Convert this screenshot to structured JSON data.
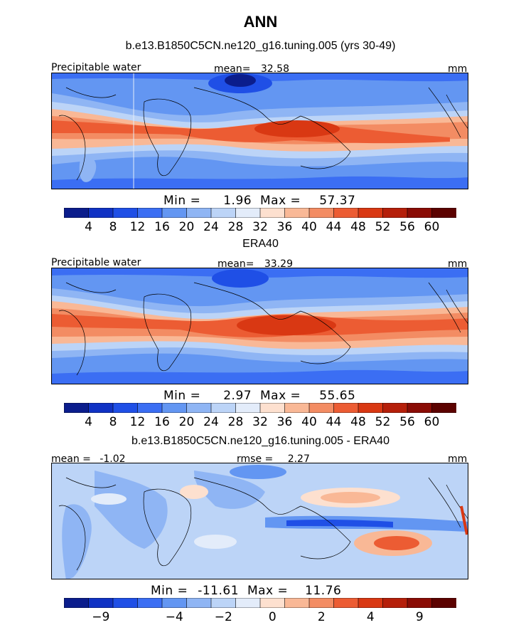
{
  "title": "ANN",
  "chart_data": [
    {
      "type": "heatmap",
      "title": "b.e13.B1850C5CN.ne120_g16.tuning.005 (yrs 30-49)",
      "variable": "Precipitable water",
      "mean_label": "mean=",
      "mean": "32.58",
      "units": "mm",
      "min_label": "Min =",
      "min": "1.96",
      "max_label": "Max =",
      "max": "57.37",
      "levels": [
        "4",
        "8",
        "12",
        "16",
        "20",
        "24",
        "28",
        "32",
        "36",
        "40",
        "44",
        "48",
        "52",
        "56",
        "60"
      ],
      "colors": [
        "#0b1d8c",
        "#1032c4",
        "#1f4fe6",
        "#3b6ef3",
        "#6396f2",
        "#8fb5f4",
        "#bcd4f7",
        "#e3ecfa",
        "#fde0cf",
        "#f9b896",
        "#f38c63",
        "#ec5c33",
        "#d93813",
        "#b51f0a",
        "#8a0c05",
        "#5c0200"
      ]
    },
    {
      "type": "heatmap",
      "title": "ERA40",
      "variable": "Precipitable water",
      "mean_label": "mean=",
      "mean": "33.29",
      "units": "mm",
      "min_label": "Min =",
      "min": "2.97",
      "max_label": "Max =",
      "max": "55.65",
      "levels": [
        "4",
        "8",
        "12",
        "16",
        "20",
        "24",
        "28",
        "32",
        "36",
        "40",
        "44",
        "48",
        "52",
        "56",
        "60"
      ],
      "colors": [
        "#0b1d8c",
        "#1032c4",
        "#1f4fe6",
        "#3b6ef3",
        "#6396f2",
        "#8fb5f4",
        "#bcd4f7",
        "#e3ecfa",
        "#fde0cf",
        "#f9b896",
        "#f38c63",
        "#ec5c33",
        "#d93813",
        "#b51f0a",
        "#8a0c05",
        "#5c0200"
      ]
    },
    {
      "type": "heatmap",
      "title": "b.e13.B1850C5CN.ne120_g16.tuning.005 - ERA40",
      "mean_label": "mean =",
      "mean": "-1.02",
      "rmse_label": "rmse =",
      "rmse": "2.27",
      "units": "mm",
      "min_label": "Min =",
      "min": "-11.61",
      "max_label": "Max =",
      "max": "11.76",
      "tick_labels": [
        "-9",
        "-4",
        "-2",
        "0",
        "2",
        "4",
        "9"
      ],
      "colors": [
        "#0b1d8c",
        "#1032c4",
        "#1f4fe6",
        "#3b6ef3",
        "#6396f2",
        "#8fb5f4",
        "#bcd4f7",
        "#e3ecfa",
        "#fde0cf",
        "#f9b896",
        "#f38c63",
        "#ec5c33",
        "#d93813",
        "#b51f0a",
        "#8a0c05",
        "#5c0200"
      ]
    }
  ]
}
